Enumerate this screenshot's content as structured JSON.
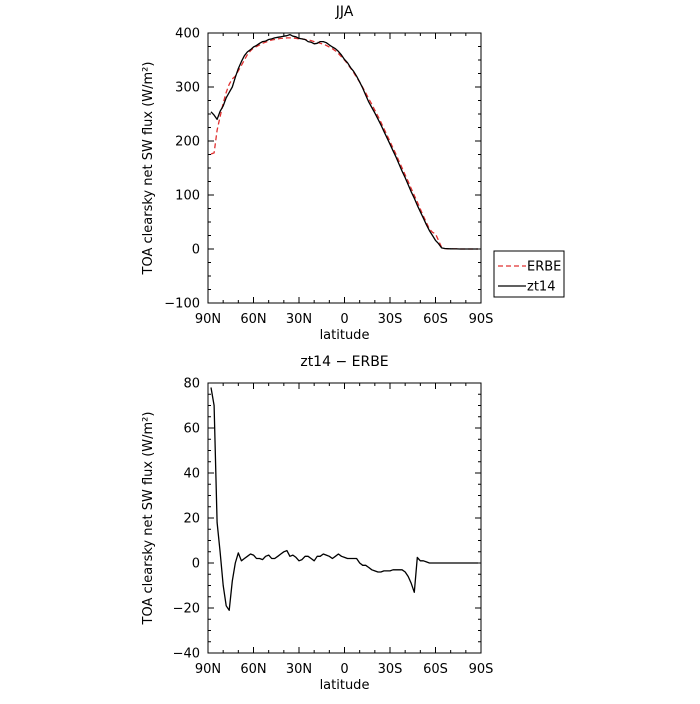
{
  "chart_data": [
    {
      "type": "line",
      "title": "JJA",
      "xlabel": "latitude",
      "ylabel": "TOA clearsky net SW flux (W/m²)",
      "xlim": [
        90,
        -90
      ],
      "ylim": [
        -100,
        400
      ],
      "x_ticks": [
        90,
        60,
        30,
        0,
        -30,
        -60,
        -90
      ],
      "x_tick_labels": [
        "90N",
        "60N",
        "30N",
        "0",
        "30S",
        "60S",
        "90S"
      ],
      "y_ticks": [
        -100,
        0,
        100,
        200,
        300,
        400
      ],
      "y_tick_labels": [
        "−100",
        "0",
        "100",
        "200",
        "300",
        "400"
      ],
      "legend_position": "right",
      "series": [
        {
          "name": "ERBE",
          "color": "#e03030",
          "dash": "dashed",
          "x": [
            88,
            86,
            84,
            82,
            80,
            78,
            76,
            74,
            72,
            70,
            68,
            66,
            64,
            62,
            60,
            58,
            56,
            54,
            52,
            50,
            48,
            46,
            44,
            42,
            40,
            38,
            36,
            34,
            32,
            30,
            28,
            26,
            24,
            22,
            20,
            18,
            16,
            14,
            12,
            10,
            8,
            6,
            4,
            2,
            0,
            -2,
            -4,
            -6,
            -8,
            -10,
            -12,
            -14,
            -16,
            -18,
            -20,
            -22,
            -24,
            -26,
            -28,
            -30,
            -32,
            -34,
            -36,
            -38,
            -40,
            -42,
            -44,
            -46,
            -48,
            -50,
            -52,
            -54,
            -56,
            -58,
            -60,
            -62,
            -64,
            -66,
            -68,
            -70,
            -72,
            -74,
            -76,
            -78,
            -80,
            -82,
            -84,
            -86,
            -88
          ],
          "y": [
            176,
            178,
            220,
            245,
            270,
            290,
            305,
            315,
            320,
            330,
            340,
            350,
            360,
            367,
            372,
            375,
            378,
            381,
            383,
            385,
            387,
            388,
            389,
            390,
            390,
            391,
            391,
            391,
            390,
            389,
            389,
            388,
            387,
            386,
            384,
            383,
            381,
            379,
            377,
            374,
            371,
            367,
            362,
            356,
            350,
            343,
            335,
            327,
            318,
            309,
            299,
            289,
            278,
            268,
            257,
            246,
            235,
            223,
            211,
            199,
            187,
            175,
            162,
            150,
            137,
            125,
            112,
            99,
            87,
            74,
            61,
            49,
            37,
            31,
            28,
            16,
            3,
            1,
            0.5,
            0.3,
            0.2,
            0.1,
            0,
            0,
            0,
            0,
            0,
            0,
            0
          ]
        },
        {
          "name": "zt14",
          "color": "#000000",
          "dash": "solid",
          "x": [
            88,
            86,
            84,
            82,
            80,
            78,
            76,
            74,
            72,
            70,
            68,
            66,
            64,
            62,
            60,
            58,
            56,
            54,
            52,
            50,
            48,
            46,
            44,
            42,
            40,
            38,
            36,
            34,
            32,
            30,
            28,
            26,
            24,
            22,
            20,
            18,
            16,
            14,
            12,
            10,
            8,
            6,
            4,
            2,
            0,
            -2,
            -4,
            -6,
            -8,
            -10,
            -12,
            -14,
            -16,
            -18,
            -20,
            -22,
            -24,
            -26,
            -28,
            -30,
            -32,
            -34,
            -36,
            -38,
            -40,
            -42,
            -44,
            -46,
            -48,
            -50,
            -52,
            -54,
            -56,
            -58,
            -60,
            -62,
            -64,
            -66,
            -68,
            -70,
            -72,
            -74,
            -76,
            -78,
            -80,
            -82,
            -84,
            -86,
            -88
          ],
          "y": [
            254,
            248,
            240,
            255,
            265,
            280,
            290,
            300,
            318,
            334,
            347,
            358,
            365,
            369,
            374,
            377,
            381,
            384,
            385,
            388,
            389,
            391,
            392,
            393,
            394,
            395,
            397,
            394,
            393,
            390,
            389,
            388,
            384,
            383,
            380,
            381,
            384,
            384,
            382,
            378,
            374,
            371,
            366,
            359,
            351,
            345,
            336,
            329,
            320,
            309,
            298,
            285,
            272,
            262,
            252,
            241,
            230,
            218,
            206,
            194,
            182,
            170,
            157,
            144,
            132,
            119,
            106,
            94,
            81,
            69,
            57,
            45,
            34,
            25,
            16,
            10,
            2,
            1,
            0.5,
            0.3,
            0.2,
            0.1,
            0,
            0,
            0,
            0,
            0,
            0,
            0
          ]
        }
      ]
    },
    {
      "type": "line",
      "title": "zt14 − ERBE",
      "xlabel": "latitude",
      "ylabel": "TOA clearsky net SW flux (W/m²)",
      "xlim": [
        90,
        -90
      ],
      "ylim": [
        -40,
        80
      ],
      "x_ticks": [
        90,
        60,
        30,
        0,
        -30,
        -60,
        -90
      ],
      "x_tick_labels": [
        "90N",
        "60N",
        "30N",
        "0",
        "30S",
        "60S",
        "90S"
      ],
      "y_ticks": [
        -40,
        -20,
        0,
        20,
        40,
        60,
        80
      ],
      "y_tick_labels": [
        "−40",
        "−20",
        "0",
        "20",
        "40",
        "60",
        "80"
      ],
      "series": [
        {
          "color": "#000000",
          "dash": "solid",
          "x": [
            88,
            86,
            84,
            82,
            80,
            78,
            76,
            74,
            72,
            70,
            68,
            66,
            64,
            62,
            60,
            58,
            56,
            54,
            52,
            50,
            48,
            46,
            44,
            42,
            40,
            38,
            36,
            34,
            32,
            30,
            28,
            26,
            24,
            22,
            20,
            18,
            16,
            14,
            12,
            10,
            8,
            6,
            4,
            2,
            0,
            -2,
            -4,
            -6,
            -8,
            -10,
            -12,
            -14,
            -16,
            -18,
            -20,
            -22,
            -24,
            -26,
            -28,
            -30,
            -32,
            -34,
            -36,
            -38,
            -40,
            -42,
            -44,
            -46,
            -48,
            -50,
            -52,
            -54,
            -56,
            -58,
            -60,
            -62,
            -64,
            -66,
            -68,
            -70,
            -72,
            -74,
            -76,
            -78,
            -80,
            -82,
            -84,
            -86,
            -88
          ],
          "y": [
            78,
            70,
            18,
            5,
            -10,
            -19,
            -21,
            -8,
            0,
            4.5,
            1,
            2,
            3,
            4,
            3.5,
            2,
            2,
            1.5,
            3,
            3.5,
            2,
            2,
            3,
            4,
            5,
            5.5,
            3,
            3.5,
            2.5,
            1,
            1.5,
            3,
            3,
            2,
            1,
            3,
            3,
            4,
            3.5,
            3,
            2,
            3,
            4,
            3,
            2.5,
            2,
            2,
            2,
            2,
            0,
            -1,
            -1,
            -2,
            -3,
            -3.5,
            -4,
            -4,
            -3.5,
            -3.5,
            -3.5,
            -3,
            -3,
            -3,
            -3,
            -4,
            -6,
            -9,
            -13,
            2.5,
            1,
            1,
            0.5,
            0,
            0,
            0,
            0,
            0,
            0,
            0,
            0,
            0,
            0,
            0,
            0,
            0,
            0,
            0,
            0,
            0
          ]
        }
      ]
    }
  ]
}
